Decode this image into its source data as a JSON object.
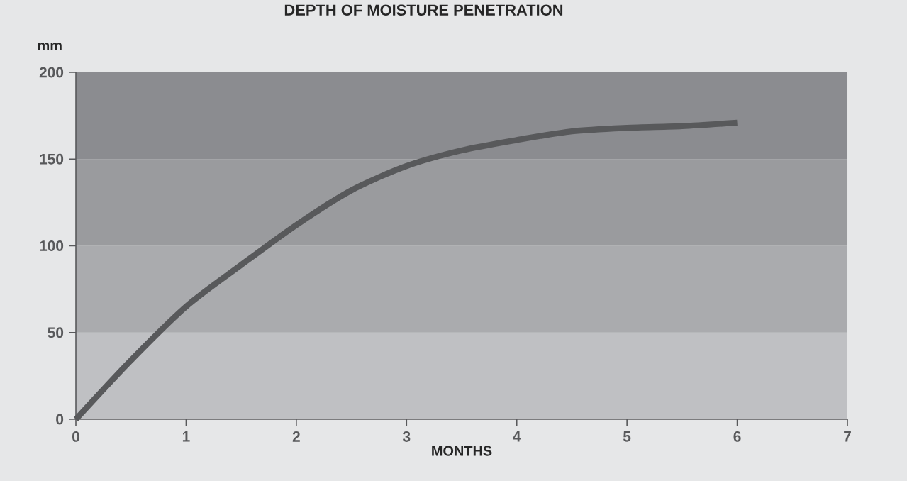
{
  "chart_data": {
    "type": "line",
    "title": "DEPTH OF MOISTURE PENETRATION",
    "xlabel": "MONTHS",
    "ylabel": "mm",
    "x": [
      0,
      0.5,
      1,
      1.5,
      2,
      2.5,
      3,
      3.5,
      4,
      4.5,
      5,
      5.5,
      6
    ],
    "series": [
      {
        "color": "#58595b",
        "values": [
          0,
          34,
          65,
          89,
          112,
          132,
          146,
          155,
          161,
          166,
          168,
          169,
          171
        ]
      }
    ],
    "xlim": [
      0,
      7
    ],
    "ylim": [
      0,
      200
    ],
    "xticks": [
      0,
      1,
      2,
      3,
      4,
      5,
      6,
      7
    ],
    "yticks": [
      0,
      50,
      100,
      150,
      200
    ],
    "bands": [
      {
        "axis": "y",
        "from": 0,
        "to": 50,
        "color": "#bfc0c3"
      },
      {
        "axis": "y",
        "from": 50,
        "to": 100,
        "color": "#aaabae"
      },
      {
        "axis": "y",
        "from": 100,
        "to": 150,
        "color": "#9a9b9e"
      },
      {
        "axis": "y",
        "from": 150,
        "to": 200,
        "color": "#8b8c90"
      }
    ]
  }
}
